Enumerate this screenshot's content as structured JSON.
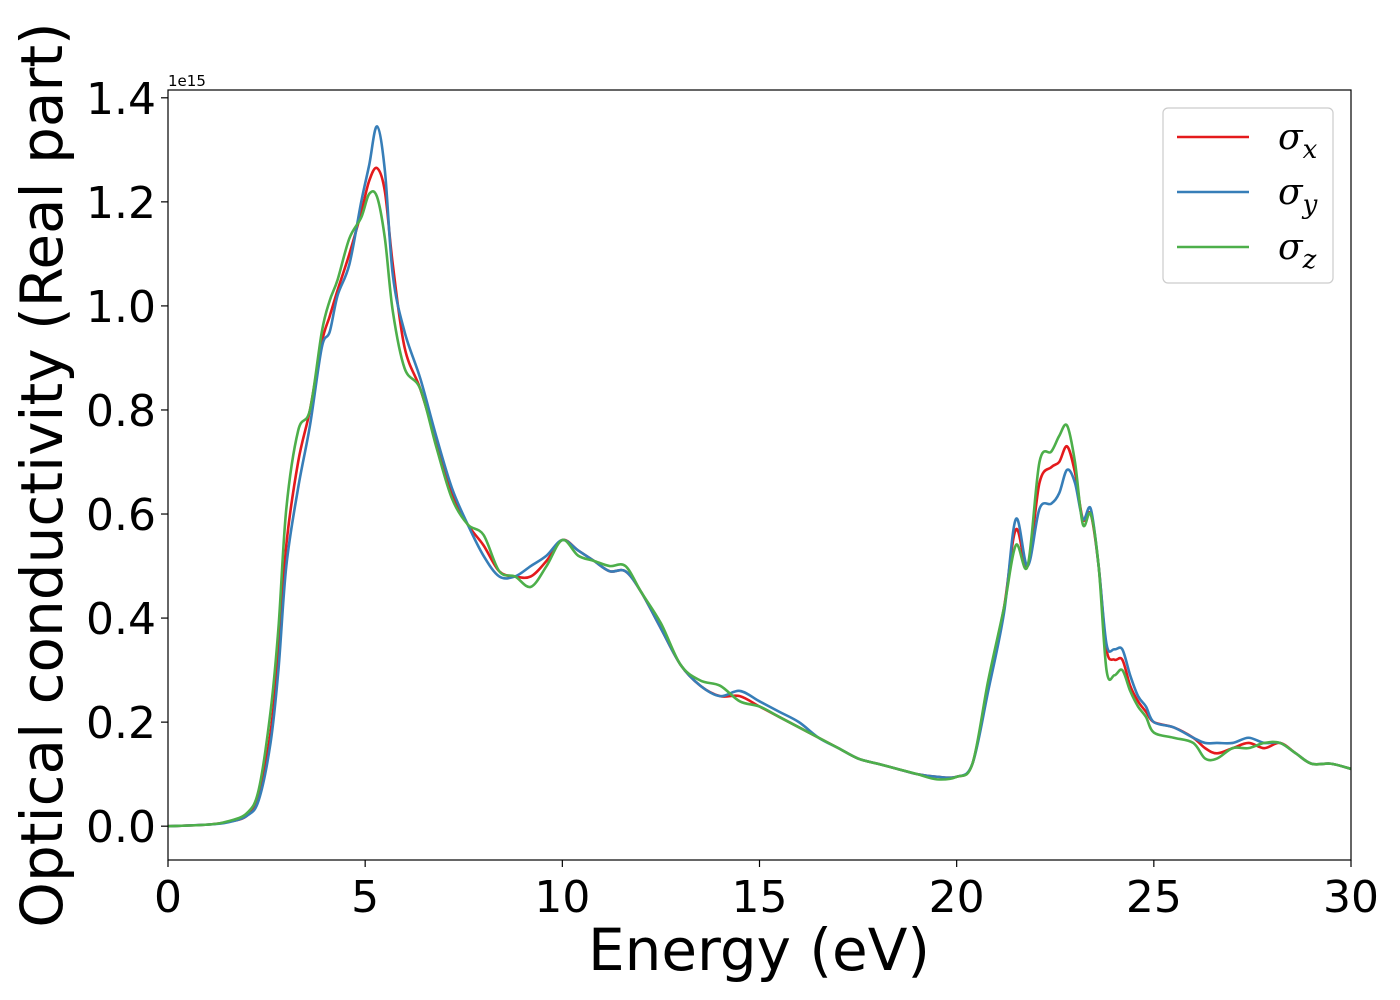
{
  "chart_data": {
    "type": "line",
    "xlabel": "Energy (eV)",
    "ylabel": "Optical conductivity (Real part)",
    "y_offset_text": "1e15",
    "xlim": [
      0,
      30
    ],
    "ylim": [
      -0.065,
      1.415
    ],
    "y_scale_multiplier": 1000000000000000.0,
    "x_ticks": [
      0,
      5,
      10,
      15,
      20,
      25,
      30
    ],
    "x_tick_labels": [
      "0",
      "5",
      "10",
      "15",
      "20",
      "25",
      "30"
    ],
    "y_ticks": [
      0.0,
      0.2,
      0.4,
      0.6,
      0.8,
      1.0,
      1.2,
      1.4
    ],
    "y_tick_labels": [
      "0.0",
      "0.2",
      "0.4",
      "0.6",
      "0.8",
      "1.0",
      "1.2",
      "1.4"
    ],
    "grid": false,
    "legend_position": "top-right",
    "x": [
      0,
      1,
      1.5,
      2,
      2.3,
      2.6,
      2.8,
      3.0,
      3.3,
      3.6,
      3.9,
      4.1,
      4.3,
      4.6,
      4.9,
      5.1,
      5.3,
      5.5,
      5.7,
      6.0,
      6.4,
      6.8,
      7.2,
      7.6,
      8.0,
      8.4,
      8.8,
      9.2,
      9.6,
      10.0,
      10.4,
      10.8,
      11.2,
      11.6,
      12.0,
      12.5,
      13.0,
      13.5,
      14.0,
      14.5,
      15.0,
      15.5,
      16.0,
      16.5,
      17.0,
      17.5,
      18.0,
      18.5,
      19.0,
      19.5,
      20.0,
      20.4,
      20.8,
      21.2,
      21.5,
      21.8,
      22.1,
      22.4,
      22.6,
      22.8,
      23.0,
      23.2,
      23.4,
      23.6,
      23.8,
      24.0,
      24.2,
      24.4,
      24.6,
      24.8,
      25.0,
      25.5,
      26.0,
      26.3,
      26.6,
      27.0,
      27.4,
      27.8,
      28.2,
      28.6,
      29.0,
      29.5,
      30.0
    ],
    "series": [
      {
        "name": "σ_x",
        "label_base": "σ",
        "label_sub": "x",
        "color": "#e41a1c",
        "values": [
          0.0,
          0.003,
          0.008,
          0.02,
          0.06,
          0.18,
          0.33,
          0.54,
          0.7,
          0.8,
          0.93,
          0.98,
          1.03,
          1.1,
          1.18,
          1.24,
          1.265,
          1.22,
          1.08,
          0.92,
          0.84,
          0.74,
          0.64,
          0.58,
          0.54,
          0.49,
          0.48,
          0.48,
          0.51,
          0.55,
          0.53,
          0.51,
          0.49,
          0.49,
          0.45,
          0.38,
          0.31,
          0.27,
          0.25,
          0.25,
          0.23,
          0.21,
          0.19,
          0.17,
          0.15,
          0.13,
          0.12,
          0.11,
          0.1,
          0.095,
          0.095,
          0.12,
          0.27,
          0.42,
          0.57,
          0.5,
          0.66,
          0.69,
          0.7,
          0.73,
          0.68,
          0.59,
          0.6,
          0.5,
          0.34,
          0.32,
          0.32,
          0.27,
          0.24,
          0.22,
          0.2,
          0.19,
          0.17,
          0.15,
          0.14,
          0.15,
          0.16,
          0.15,
          0.16,
          0.14,
          0.12,
          0.12,
          0.11
        ]
      },
      {
        "name": "σ_y",
        "label_base": "σ",
        "label_sub": "y",
        "color": "#377eb8",
        "values": [
          0.0,
          0.003,
          0.007,
          0.02,
          0.05,
          0.16,
          0.3,
          0.5,
          0.65,
          0.77,
          0.92,
          0.95,
          1.02,
          1.08,
          1.2,
          1.27,
          1.345,
          1.26,
          1.06,
          0.95,
          0.86,
          0.75,
          0.65,
          0.58,
          0.52,
          0.48,
          0.48,
          0.5,
          0.52,
          0.55,
          0.53,
          0.51,
          0.49,
          0.49,
          0.45,
          0.38,
          0.31,
          0.27,
          0.25,
          0.26,
          0.24,
          0.22,
          0.2,
          0.17,
          0.15,
          0.13,
          0.12,
          0.11,
          0.1,
          0.095,
          0.095,
          0.12,
          0.26,
          0.41,
          0.59,
          0.5,
          0.61,
          0.62,
          0.64,
          0.685,
          0.66,
          0.59,
          0.61,
          0.5,
          0.35,
          0.34,
          0.34,
          0.29,
          0.25,
          0.23,
          0.2,
          0.19,
          0.17,
          0.16,
          0.16,
          0.16,
          0.17,
          0.16,
          0.16,
          0.14,
          0.12,
          0.12,
          0.11
        ]
      },
      {
        "name": "σ_z",
        "label_base": "σ",
        "label_sub": "z",
        "color": "#4daf4a",
        "values": [
          0.0,
          0.003,
          0.009,
          0.025,
          0.07,
          0.22,
          0.38,
          0.61,
          0.76,
          0.8,
          0.95,
          1.01,
          1.05,
          1.13,
          1.17,
          1.215,
          1.21,
          1.13,
          0.99,
          0.88,
          0.84,
          0.73,
          0.63,
          0.58,
          0.56,
          0.49,
          0.48,
          0.46,
          0.5,
          0.55,
          0.52,
          0.51,
          0.5,
          0.5,
          0.45,
          0.39,
          0.31,
          0.28,
          0.27,
          0.24,
          0.23,
          0.21,
          0.19,
          0.17,
          0.15,
          0.13,
          0.12,
          0.11,
          0.1,
          0.09,
          0.095,
          0.12,
          0.28,
          0.42,
          0.54,
          0.5,
          0.7,
          0.72,
          0.75,
          0.77,
          0.7,
          0.58,
          0.6,
          0.5,
          0.3,
          0.29,
          0.3,
          0.26,
          0.23,
          0.21,
          0.18,
          0.17,
          0.16,
          0.13,
          0.13,
          0.15,
          0.15,
          0.16,
          0.16,
          0.14,
          0.12,
          0.12,
          0.11
        ]
      }
    ]
  }
}
